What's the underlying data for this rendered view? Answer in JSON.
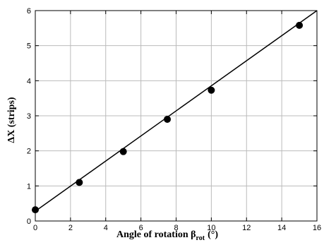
{
  "chart_data": {
    "type": "scatter",
    "title": "",
    "xlabel": {
      "main": "Angle of rotation β",
      "sub": "rot",
      "unit": "(°)"
    },
    "ylabel": "ΔX (strips)",
    "xlim": [
      0,
      16
    ],
    "ylim": [
      0,
      6
    ],
    "xticks": [
      "0",
      "2",
      "4",
      "6",
      "8",
      "10",
      "12",
      "14",
      "16"
    ],
    "yticks": [
      "0",
      "1",
      "2",
      "3",
      "4",
      "5",
      "6"
    ],
    "grid": true,
    "points": {
      "x": [
        0,
        2.5,
        5,
        7.5,
        10,
        15
      ],
      "y": [
        0.32,
        1.1,
        1.98,
        2.9,
        3.73,
        5.58
      ]
    },
    "fit_line": {
      "x": [
        0,
        16
      ],
      "y": [
        0.28,
        6.0
      ]
    },
    "colors": {
      "points": "#000000",
      "line": "#000000",
      "grid": "#bbbbbb"
    }
  }
}
